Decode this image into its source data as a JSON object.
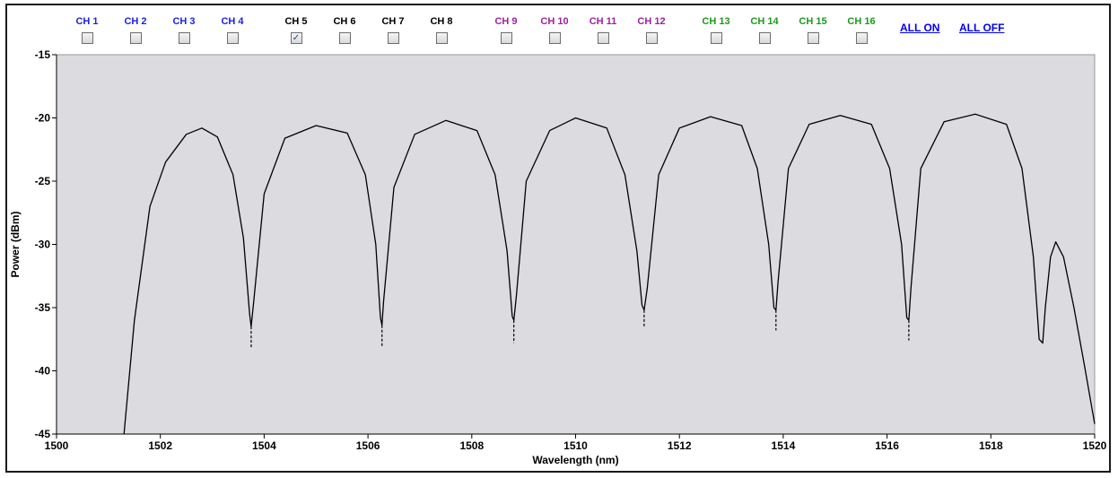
{
  "channels": [
    {
      "label": "CH 1",
      "color": "#2020e0",
      "checked": false
    },
    {
      "label": "CH 2",
      "color": "#2020e0",
      "checked": false
    },
    {
      "label": "CH 3",
      "color": "#2020e0",
      "checked": false
    },
    {
      "label": "CH 4",
      "color": "#2020e0",
      "checked": false
    },
    {
      "label": "CH 5",
      "color": "#000000",
      "checked": true
    },
    {
      "label": "CH 6",
      "color": "#000000",
      "checked": false
    },
    {
      "label": "CH 7",
      "color": "#000000",
      "checked": false
    },
    {
      "label": "CH 8",
      "color": "#000000",
      "checked": false
    },
    {
      "label": "CH 9",
      "color": "#a020a0",
      "checked": false
    },
    {
      "label": "CH 10",
      "color": "#a020a0",
      "checked": false
    },
    {
      "label": "CH 11",
      "color": "#a020a0",
      "checked": false
    },
    {
      "label": "CH 12",
      "color": "#a020a0",
      "checked": false
    },
    {
      "label": "CH 13",
      "color": "#1a9a1a",
      "checked": false
    },
    {
      "label": "CH 14",
      "color": "#1a9a1a",
      "checked": false
    },
    {
      "label": "CH 15",
      "color": "#1a9a1a",
      "checked": false
    },
    {
      "label": "CH 16",
      "color": "#1a9a1a",
      "checked": false
    }
  ],
  "controls": {
    "all_on": "ALL ON",
    "all_off": "ALL OFF"
  },
  "colors": {
    "plot_bg": "#dcdbe0",
    "trace": "#000000",
    "link": "#0000ee"
  },
  "chart_data": {
    "type": "line",
    "xlabel": "Wavelength (nm)",
    "ylabel": "Power (dBm)",
    "xlim": [
      1500,
      1520
    ],
    "ylim": [
      -45,
      -15
    ],
    "xticks": [
      1500,
      1502,
      1504,
      1506,
      1508,
      1510,
      1512,
      1514,
      1516,
      1518,
      1520
    ],
    "yticks": [
      -15,
      -20,
      -25,
      -30,
      -35,
      -40,
      -45
    ],
    "grid": false,
    "series": [
      {
        "x": [
          1501.3,
          1501.5,
          1501.8,
          1502.1,
          1502.5,
          1502.8,
          1503.1,
          1503.4,
          1503.6,
          1503.72,
          1503.75,
          1503.8,
          1504.0,
          1504.4,
          1505.0,
          1505.6,
          1505.95,
          1506.15,
          1506.24,
          1506.27,
          1506.3,
          1506.5,
          1506.9,
          1507.5,
          1508.1,
          1508.45,
          1508.68,
          1508.78,
          1508.81,
          1508.86,
          1509.05,
          1509.5,
          1510.0,
          1510.6,
          1510.95,
          1511.18,
          1511.28,
          1511.32,
          1511.38,
          1511.6,
          1512.0,
          1512.6,
          1513.2,
          1513.5,
          1513.72,
          1513.82,
          1513.86,
          1513.9,
          1514.1,
          1514.5,
          1515.1,
          1515.7,
          1516.05,
          1516.28,
          1516.38,
          1516.42,
          1516.46,
          1516.65,
          1517.1,
          1517.7,
          1518.3,
          1518.6,
          1518.82,
          1518.93,
          1519.0,
          1519.05,
          1519.15,
          1519.25,
          1519.4,
          1519.6,
          1519.8,
          1520.0
        ],
        "y": [
          -45,
          -36,
          -27,
          -23.5,
          -21.3,
          -20.8,
          -21.5,
          -24.5,
          -29.5,
          -35.5,
          -36.5,
          -34.5,
          -26,
          -21.6,
          -20.6,
          -21.2,
          -24.5,
          -30,
          -35.8,
          -36.4,
          -34.5,
          -25.5,
          -21.3,
          -20.2,
          -21,
          -24.5,
          -30.5,
          -35.7,
          -36.0,
          -34,
          -25,
          -21,
          -20.0,
          -20.8,
          -24.5,
          -30.5,
          -34.8,
          -35.2,
          -33.5,
          -24.5,
          -20.8,
          -19.9,
          -20.6,
          -24,
          -30,
          -35.0,
          -35.2,
          -33,
          -24,
          -20.5,
          -19.8,
          -20.5,
          -24,
          -30,
          -35.8,
          -36.0,
          -33.5,
          -24,
          -20.3,
          -19.7,
          -20.5,
          -24,
          -31,
          -37.5,
          -37.8,
          -35,
          -31,
          -29.8,
          -31,
          -35,
          -39.5,
          -44.2
        ]
      }
    ],
    "extra_marks": [
      {
        "x": 1503.75,
        "y_from": -36.5,
        "y_to": -38.2
      },
      {
        "x": 1506.27,
        "y_from": -36.4,
        "y_to": -38.1
      },
      {
        "x": 1508.81,
        "y_from": -36.0,
        "y_to": -37.8
      },
      {
        "x": 1511.32,
        "y_from": -35.2,
        "y_to": -36.6
      },
      {
        "x": 1513.86,
        "y_from": -35.2,
        "y_to": -36.8
      },
      {
        "x": 1516.42,
        "y_from": -36.0,
        "y_to": -37.6
      }
    ]
  }
}
